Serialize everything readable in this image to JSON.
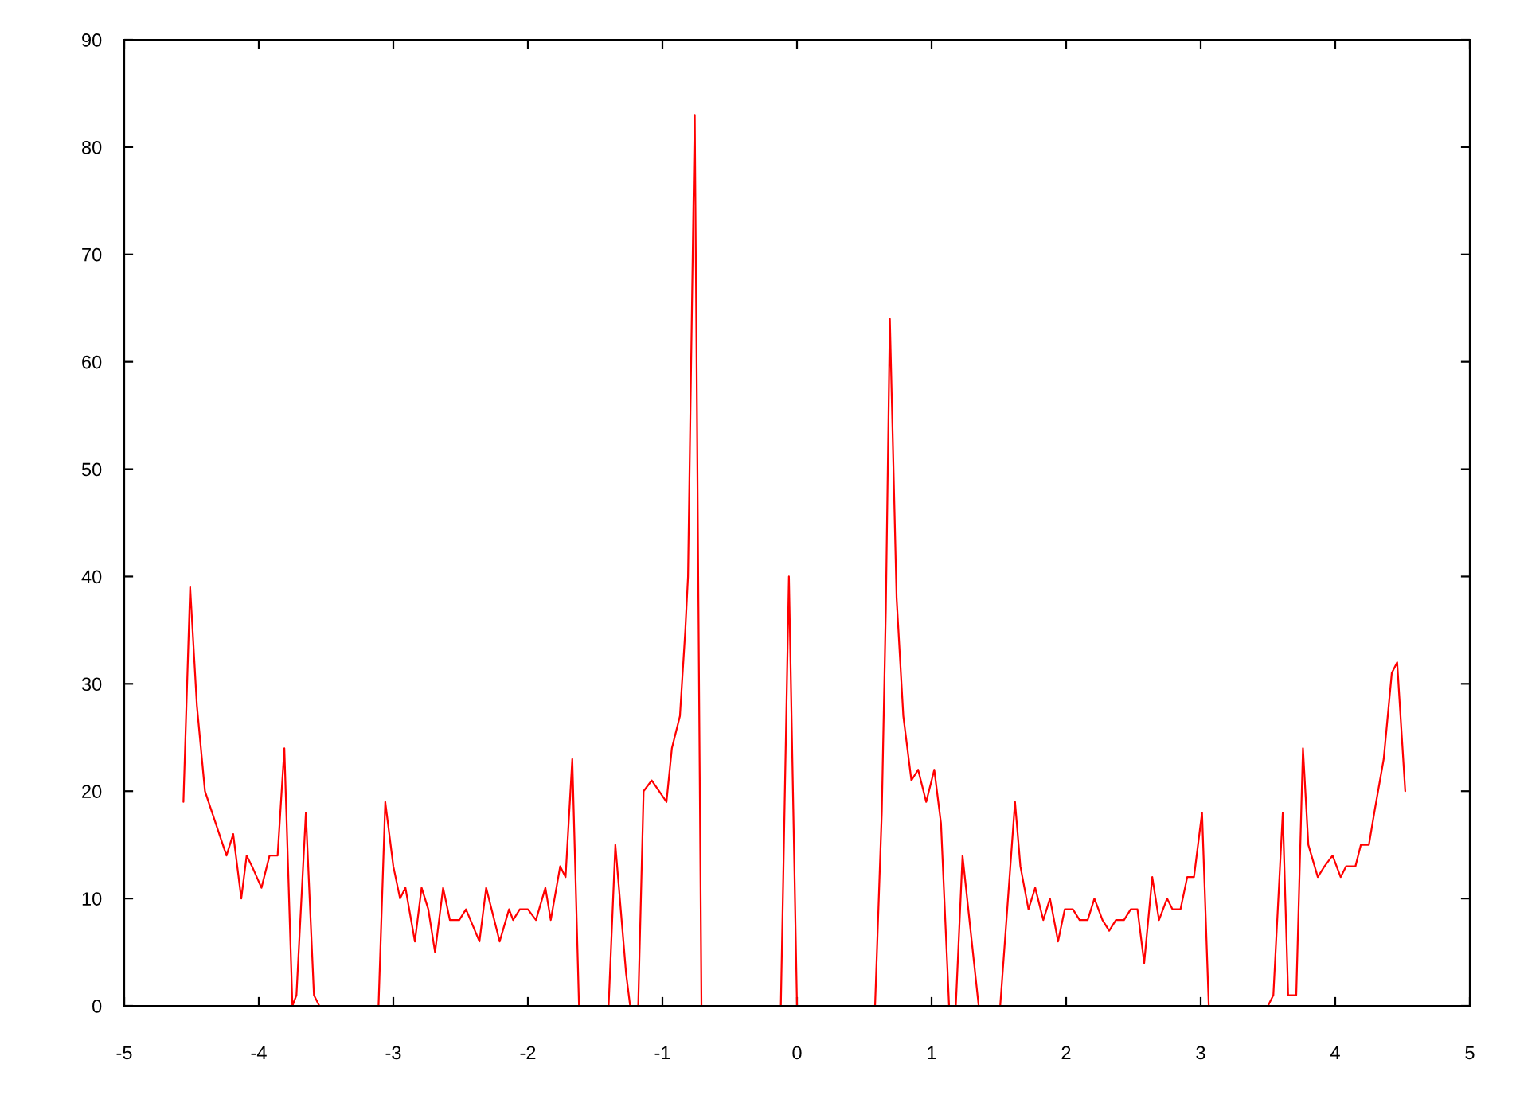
{
  "chart_data": {
    "type": "line",
    "color": "#ff0000",
    "x": [
      -4.56,
      -4.51,
      -4.46,
      -4.4,
      -4.24,
      -4.19,
      -4.13,
      -4.09,
      -4.05,
      -3.98,
      -3.92,
      -3.86,
      -3.81,
      -3.75,
      -3.72,
      -3.65,
      -3.59,
      -3.55,
      -3.35,
      -3.11,
      -3.06,
      -3.0,
      -2.95,
      -2.91,
      -2.84,
      -2.79,
      -2.74,
      -2.69,
      -2.63,
      -2.58,
      -2.51,
      -2.46,
      -2.36,
      -2.31,
      -2.21,
      -2.14,
      -2.11,
      -2.06,
      -2.0,
      -1.94,
      -1.87,
      -1.83,
      -1.76,
      -1.72,
      -1.67,
      -1.62,
      -1.5,
      -1.4,
      -1.35,
      -1.31,
      -1.27,
      -1.24,
      -1.21,
      -1.18,
      -1.14,
      -1.08,
      -0.97,
      -0.93,
      -0.87,
      -0.83,
      -0.81,
      -0.76,
      -0.71,
      -0.4,
      -0.12,
      -0.06,
      0.0,
      0.3,
      0.58,
      0.63,
      0.66,
      0.69,
      0.74,
      0.79,
      0.85,
      0.9,
      0.96,
      1.02,
      1.07,
      1.13,
      1.155,
      1.18,
      1.23,
      1.35,
      1.43,
      1.51,
      1.62,
      1.66,
      1.72,
      1.77,
      1.83,
      1.88,
      1.94,
      1.99,
      2.05,
      2.1,
      2.16,
      2.21,
      2.27,
      2.32,
      2.37,
      2.43,
      2.48,
      2.53,
      2.58,
      2.64,
      2.69,
      2.75,
      2.79,
      2.85,
      2.9,
      2.95,
      3.01,
      3.06,
      3.3,
      3.5,
      3.54,
      3.61,
      3.65,
      3.71,
      3.76,
      3.8,
      3.87,
      3.92,
      3.98,
      4.04,
      4.08,
      4.15,
      4.19,
      4.25,
      4.29,
      4.36,
      4.42,
      4.46,
      4.52
    ],
    "values": [
      19,
      39,
      28,
      20,
      14,
      16,
      10,
      14,
      13,
      11,
      14,
      14,
      24,
      0,
      1,
      18,
      1,
      0,
      null,
      0,
      19,
      13,
      10,
      11,
      6,
      11,
      9,
      5,
      11,
      8,
      8,
      9,
      6,
      11,
      6,
      9,
      8,
      9,
      9,
      8,
      11,
      8,
      13,
      12,
      23,
      0,
      null,
      0,
      15,
      9,
      3,
      0,
      null,
      0,
      20,
      21,
      19,
      24,
      27,
      35,
      40,
      83,
      0,
      null,
      0,
      40,
      0,
      null,
      0,
      18,
      37,
      64,
      38,
      27,
      21,
      22,
      19,
      22,
      17,
      0,
      null,
      0,
      14,
      0,
      null,
      0,
      19,
      13,
      9,
      11,
      8,
      10,
      6,
      9,
      9,
      8,
      8,
      10,
      8,
      7,
      8,
      8,
      9,
      9,
      4,
      12,
      8,
      10,
      9,
      9,
      12,
      12,
      18,
      0,
      null,
      0,
      1,
      18,
      1,
      1,
      24,
      15,
      12,
      13,
      14,
      12,
      13,
      13,
      15,
      15,
      18,
      23,
      31,
      32,
      20
    ],
    "xlim": [
      -5,
      5
    ],
    "ylim": [
      0,
      90
    ],
    "xticks": [
      -5,
      -4,
      -3,
      -2,
      -1,
      0,
      1,
      2,
      3,
      4,
      5
    ],
    "yticks": [
      0,
      10,
      20,
      30,
      40,
      50,
      60,
      70,
      80,
      90
    ]
  }
}
